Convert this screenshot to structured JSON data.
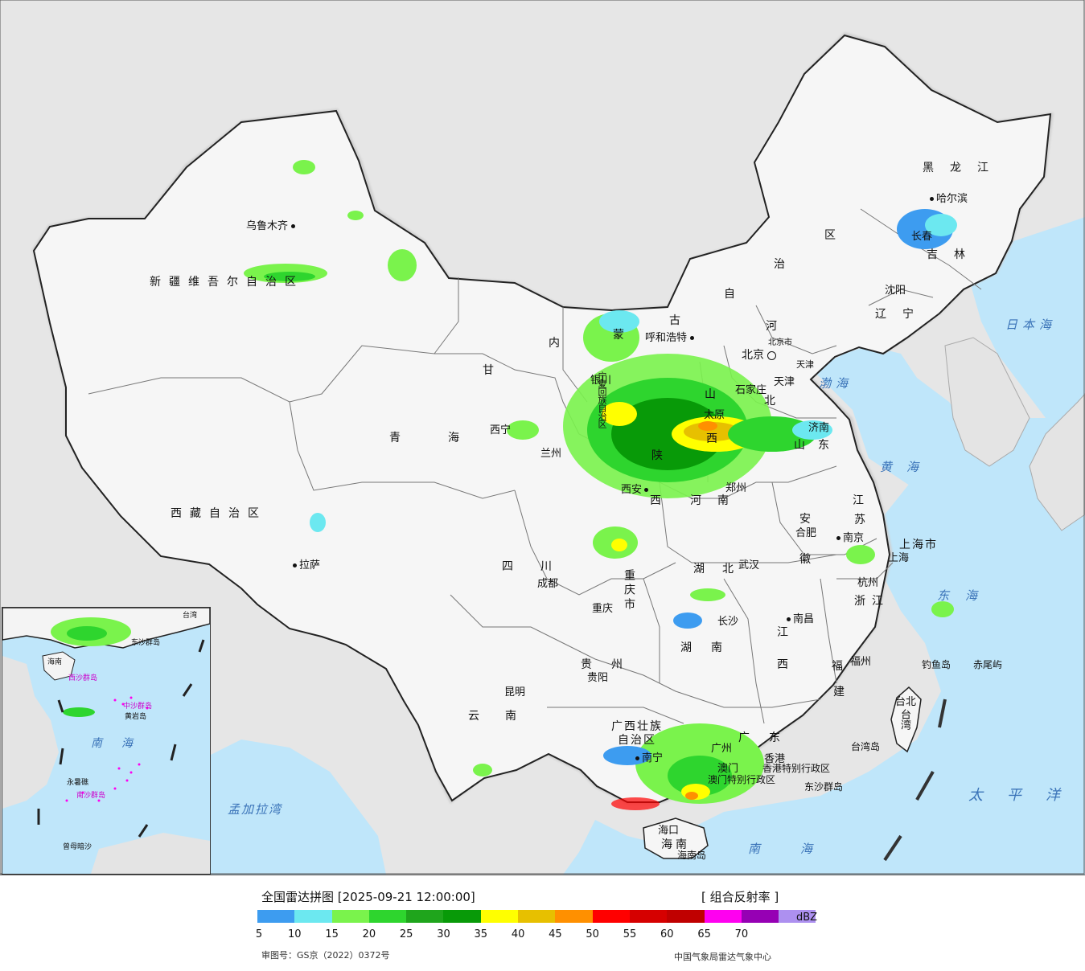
{
  "legend": {
    "title": "全国雷达拼图 [2025-09-21 12:00:00]",
    "product": "[ 组合反射率 ]",
    "unit": "dBZ",
    "ticks": [
      "5",
      "10",
      "15",
      "20",
      "25",
      "30",
      "35",
      "40",
      "45",
      "50",
      "55",
      "60",
      "65",
      "70"
    ],
    "colors": [
      "#3d9cf0",
      "#6ce8f0",
      "#7af34c",
      "#2ed52e",
      "#1fa51c",
      "#089a08",
      "#ffff00",
      "#e7c000",
      "#ff9000",
      "#ff0000",
      "#d60000",
      "#c00000",
      "#ff00f0",
      "#9600b4",
      "#ad90f0"
    ],
    "approval": "审图号：GS京（2022）0372号",
    "agency": "中国气象局雷达气象中心"
  },
  "provinces": [
    {
      "id": "xinjiang",
      "text": "新疆维吾尔自治区"
    },
    {
      "id": "xizang",
      "text": "西藏自治区"
    },
    {
      "id": "qinghai-a",
      "text": "青"
    },
    {
      "id": "qinghai-b",
      "text": "海"
    },
    {
      "id": "gansu",
      "text": "甘"
    },
    {
      "id": "neimenggu-nei",
      "text": "内"
    },
    {
      "id": "neimenggu-meng",
      "text": "蒙"
    },
    {
      "id": "neimenggu-gu",
      "text": "古"
    },
    {
      "id": "neimenggu-zi",
      "text": "自"
    },
    {
      "id": "neimenggu-zhi",
      "text": "治"
    },
    {
      "id": "neimenggu-qu",
      "text": "区"
    },
    {
      "id": "heilongjiang",
      "text": "黑龙江"
    },
    {
      "id": "jilin",
      "text": "吉林"
    },
    {
      "id": "liaoning",
      "text": "辽宁"
    },
    {
      "id": "hebei-a",
      "text": "河"
    },
    {
      "id": "hebei-b",
      "text": "北"
    },
    {
      "id": "shanxi-a",
      "text": "山"
    },
    {
      "id": "shanxi-b",
      "text": "西"
    },
    {
      "id": "shandong",
      "text": "山东"
    },
    {
      "id": "shaanxi-a",
      "text": "陕"
    },
    {
      "id": "shaanxi-b",
      "text": "西"
    },
    {
      "id": "henan",
      "text": "河南"
    },
    {
      "id": "sichuan",
      "text": "四川"
    },
    {
      "id": "chongqing",
      "text": "重庆市"
    },
    {
      "id": "hubei",
      "text": "湖北"
    },
    {
      "id": "anhui-a",
      "text": "安"
    },
    {
      "id": "anhui-b",
      "text": "徽"
    },
    {
      "id": "jiangsu-a",
      "text": "江"
    },
    {
      "id": "jiangsu-b",
      "text": "苏"
    },
    {
      "id": "shanghai",
      "text": "上海市"
    },
    {
      "id": "zhejiang",
      "text": "浙江"
    },
    {
      "id": "hunan",
      "text": "湖南"
    },
    {
      "id": "jiangxi-a",
      "text": "江"
    },
    {
      "id": "jiangxi-b",
      "text": "西"
    },
    {
      "id": "fujian-a",
      "text": "福"
    },
    {
      "id": "fujian-b",
      "text": "建"
    },
    {
      "id": "guizhou",
      "text": "贵州"
    },
    {
      "id": "yunnan",
      "text": "云南"
    },
    {
      "id": "guangxi-a",
      "text": "广西壮族"
    },
    {
      "id": "guangxi-b",
      "text": "自治区"
    },
    {
      "id": "guangdong",
      "text": "广东"
    },
    {
      "id": "hainan",
      "text": "海南"
    },
    {
      "id": "taiwan",
      "text": "台湾"
    },
    {
      "id": "ningxia",
      "text": "宁夏回族自治区"
    },
    {
      "id": "hk",
      "text": "香港特别行政区"
    },
    {
      "id": "macau",
      "text": "澳门特别行政区"
    }
  ],
  "cities": [
    {
      "id": "urumqi",
      "text": "乌鲁木齐"
    },
    {
      "id": "lhasa",
      "text": "拉萨"
    },
    {
      "id": "xining",
      "text": "西宁"
    },
    {
      "id": "lanzhou",
      "text": "兰州"
    },
    {
      "id": "yinchuan",
      "text": "银川"
    },
    {
      "id": "hohhot",
      "text": "呼和浩特"
    },
    {
      "id": "harbin",
      "text": "哈尔滨"
    },
    {
      "id": "changchun",
      "text": "长春"
    },
    {
      "id": "shenyang",
      "text": "沈阳"
    },
    {
      "id": "beijing",
      "text": "北京"
    },
    {
      "id": "tianjin",
      "text": "天津"
    },
    {
      "id": "shijiazhuang",
      "text": "石家庄"
    },
    {
      "id": "taiyuan",
      "text": "太原"
    },
    {
      "id": "jinan",
      "text": "济南"
    },
    {
      "id": "zhengzhou",
      "text": "郑州"
    },
    {
      "id": "xian",
      "text": "西安"
    },
    {
      "id": "chengdu",
      "text": "成都"
    },
    {
      "id": "chongqing-city",
      "text": "重庆"
    },
    {
      "id": "wuhan",
      "text": "武汉"
    },
    {
      "id": "hefei",
      "text": "合肥"
    },
    {
      "id": "nanjing",
      "text": "南京"
    },
    {
      "id": "shanghai-city",
      "text": "上海"
    },
    {
      "id": "hangzhou",
      "text": "杭州"
    },
    {
      "id": "changsha",
      "text": "长沙"
    },
    {
      "id": "nanchang",
      "text": "南昌"
    },
    {
      "id": "fuzhou",
      "text": "福州"
    },
    {
      "id": "guiyang",
      "text": "贵阳"
    },
    {
      "id": "kunming",
      "text": "昆明"
    },
    {
      "id": "nanning",
      "text": "南宁"
    },
    {
      "id": "guangzhou",
      "text": "广州"
    },
    {
      "id": "haikou",
      "text": "海口"
    },
    {
      "id": "taibei",
      "text": "台北"
    },
    {
      "id": "hk-city",
      "text": "香港"
    },
    {
      "id": "macau-city",
      "text": "澳门"
    },
    {
      "id": "beijingshi",
      "text": "北京市"
    },
    {
      "id": "tianjinshi",
      "text": "天津"
    }
  ],
  "seas": [
    {
      "id": "sea-japan",
      "text": "日本海"
    },
    {
      "id": "sea-bohai",
      "text": "渤海"
    },
    {
      "id": "sea-yellow",
      "text": "黄海"
    },
    {
      "id": "sea-east",
      "text": "东海"
    },
    {
      "id": "sea-pacific",
      "text": "太平洋"
    },
    {
      "id": "sea-south",
      "text": "南海"
    },
    {
      "id": "sea-bengal",
      "text": "孟加拉湾"
    }
  ],
  "islands": [
    {
      "id": "diaoyu",
      "text": "钓鱼岛"
    },
    {
      "id": "chiwei",
      "text": "赤尾屿"
    },
    {
      "id": "taiwan-island",
      "text": "台湾岛"
    },
    {
      "id": "dongsha",
      "text": "东沙群岛"
    },
    {
      "id": "hainan-island",
      "text": "海南岛"
    }
  ],
  "inset": {
    "labels": [
      {
        "id": "inset-south-sea",
        "text": "南海"
      },
      {
        "id": "inset-xisha",
        "text": "西沙群岛"
      },
      {
        "id": "inset-zhongsha",
        "text": "中沙群岛"
      },
      {
        "id": "inset-nansha",
        "text": "南沙群岛"
      },
      {
        "id": "inset-dongsha",
        "text": "东沙群岛"
      },
      {
        "id": "inset-huangyan",
        "text": "黄岩岛"
      },
      {
        "id": "inset-yongshu",
        "text": "永暑礁"
      },
      {
        "id": "inset-zengmu",
        "text": "曾母暗沙"
      },
      {
        "id": "inset-taiwan",
        "text": "台湾"
      },
      {
        "id": "inset-hainan",
        "text": "海南"
      }
    ]
  },
  "map_colors": {
    "ocean": "#bfe6fa",
    "land": "#f4f4f4",
    "foreign": "#e4e4e4",
    "border": "#222222"
  }
}
